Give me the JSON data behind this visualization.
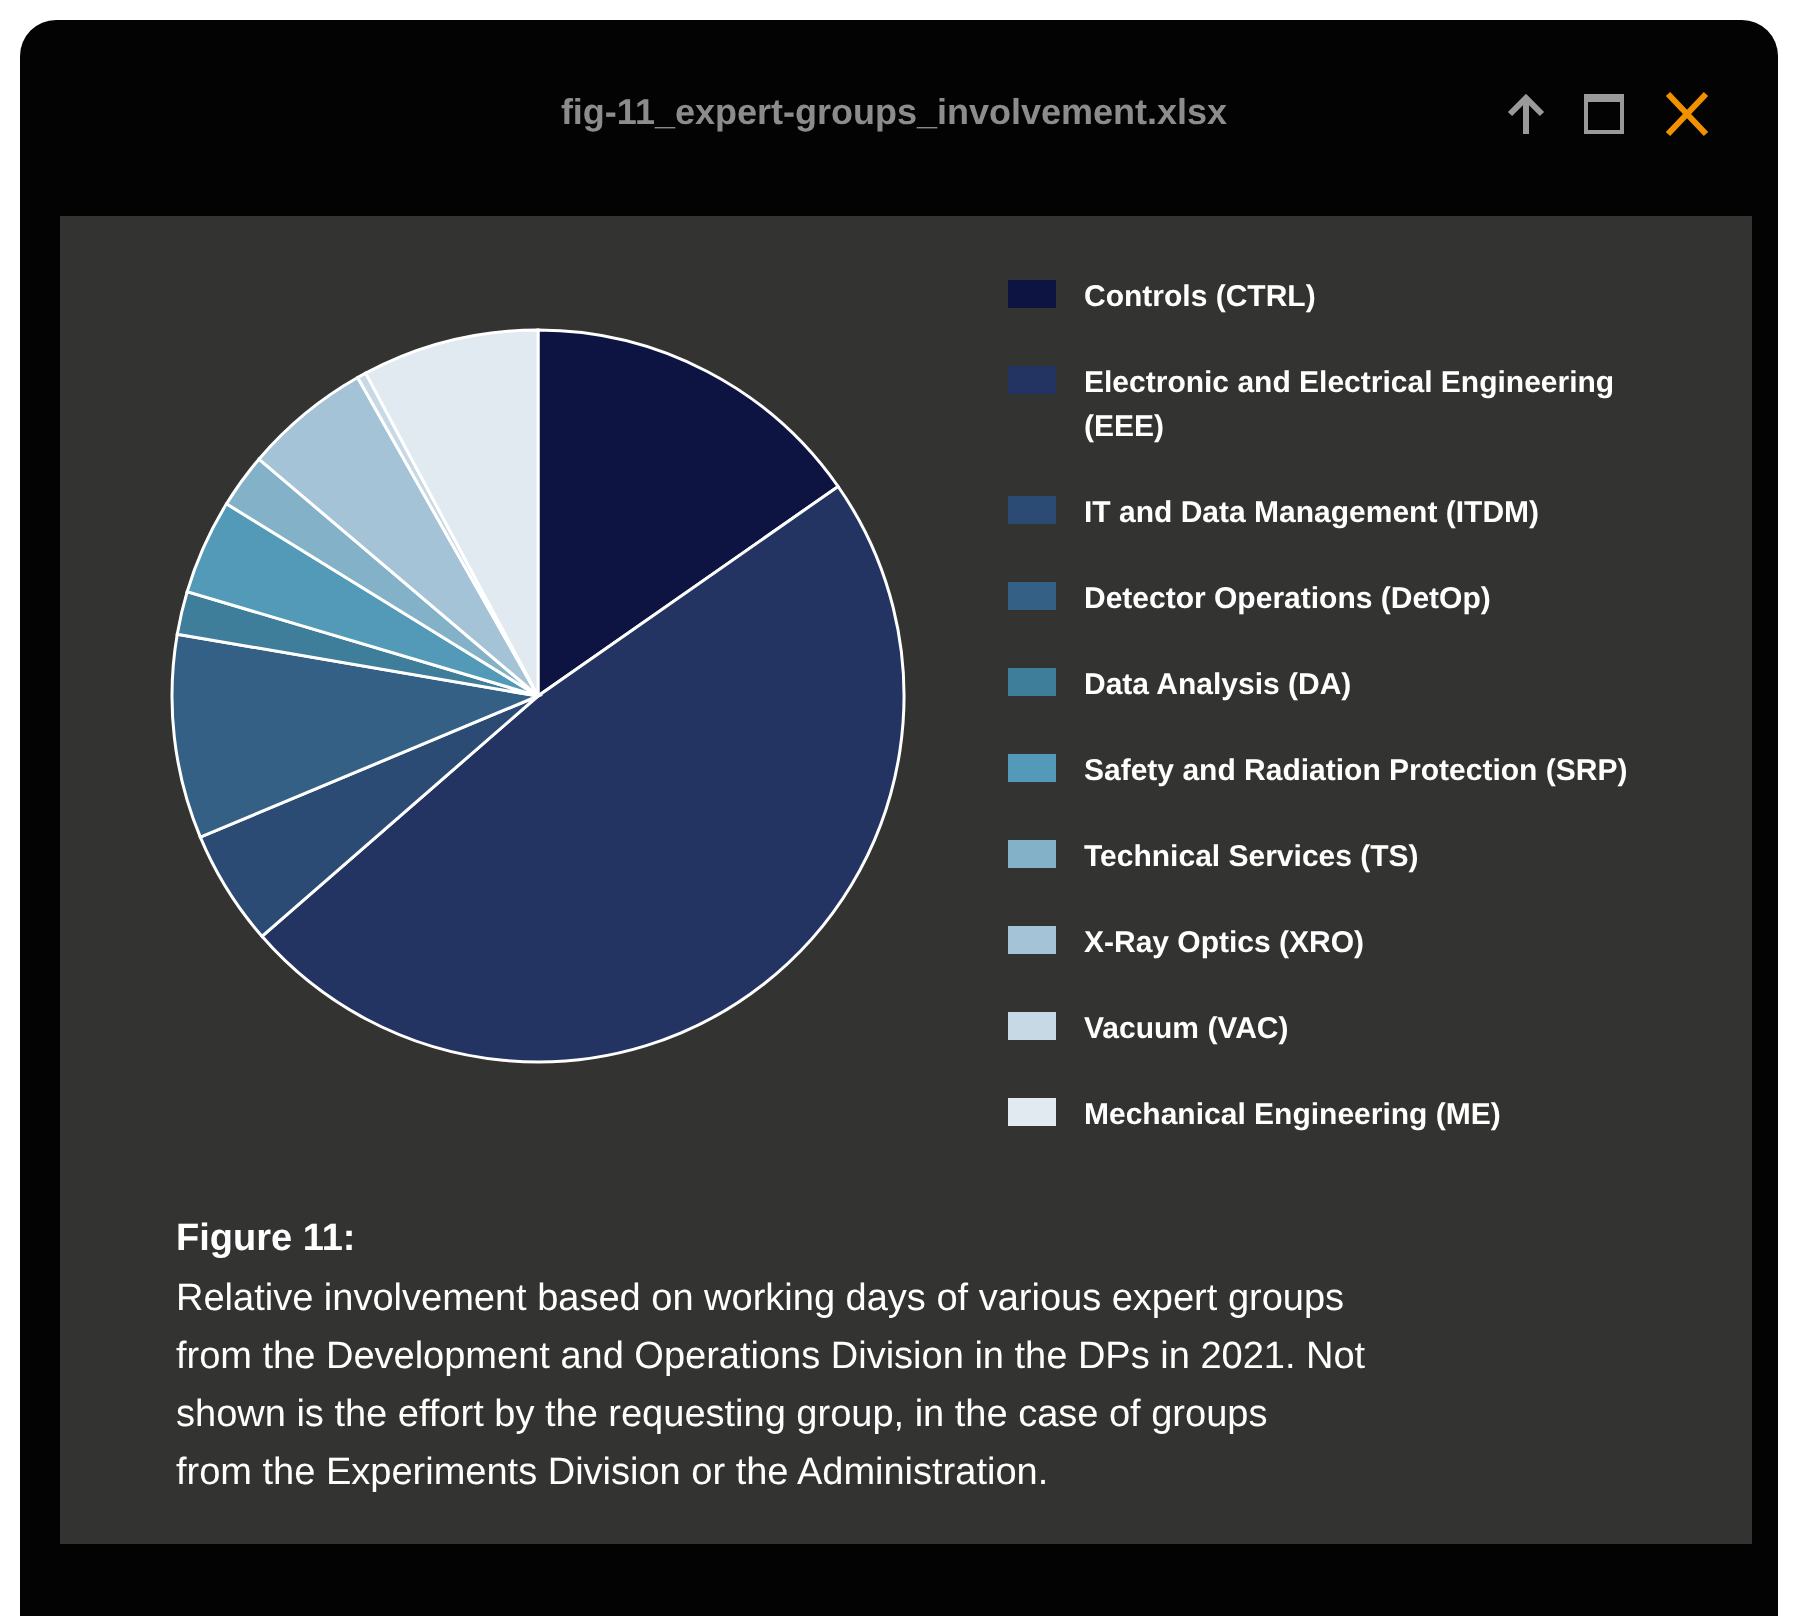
{
  "chart_data": {
    "type": "pie",
    "title": "Figure 11:",
    "annotations": [
      "fig-11_expert-groups_involvement.xlsx",
      "Relative involvement based on working days of various expert groups from the Development and Operations Division in the DPs in 2021. Not shown is the effort by the requesting group, in the case of groups from the Experiments Division or the Administration."
    ],
    "categories": [
      "Controls (CTRL)",
      "Electronic and Electrical Engineering (EEE)",
      "IT and Data Management (ITDM)",
      "Detector Operations (DetOp)",
      "Data Analysis (DA)",
      "Safety and Radiation Protection (SRP)",
      "Technical Services (TS)",
      "X-Ray Optics (XRO)",
      "Vacuum (VAC)",
      "Mechanical Engineering (ME)"
    ],
    "values": [
      15.3,
      48.3,
      5.1,
      9.0,
      1.9,
      4.2,
      2.4,
      5.6,
      0.4,
      7.8
    ],
    "colors": [
      "#0e1442",
      "#233463",
      "#2b4a74",
      "#356085",
      "#3f7e9b",
      "#529ab7",
      "#82b1c8",
      "#a5c3d7",
      "#c8d9e6",
      "#e1e9f1"
    ],
    "legend": "right"
  }
}
